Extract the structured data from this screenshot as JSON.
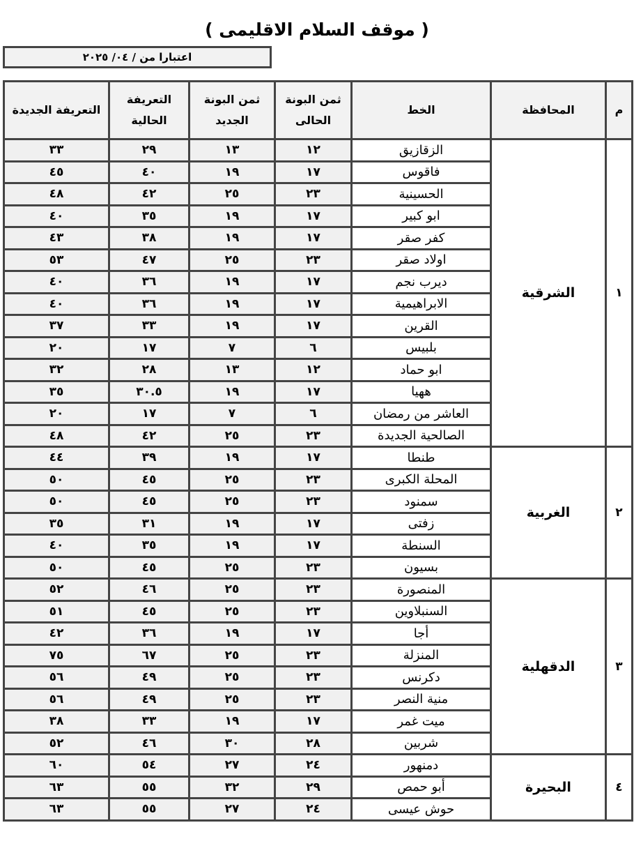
{
  "title": "( موقف السلام الاقليمى )",
  "effective_date": "اعتبارا من   / ٠٤/ ٢٠٢٥",
  "headers": {
    "index": "م",
    "governorate": "المحافظة",
    "line": "الخط",
    "current_ticket_price": "ثمن البونة الحالى",
    "new_ticket_price": "ثمن البونة الجديد",
    "current_fare": "التعريفة الحالية",
    "new_fare": "التعريفة الجديدة"
  },
  "groups": [
    {
      "index": "١",
      "governorate": "الشرقية",
      "rows": [
        {
          "line": "الزقازيق",
          "cur_ticket": "١٢",
          "new_ticket": "١٣",
          "cur_fare": "٢٩",
          "new_fare": "٣٣"
        },
        {
          "line": "فاقوس",
          "cur_ticket": "١٧",
          "new_ticket": "١٩",
          "cur_fare": "٤٠",
          "new_fare": "٤٥"
        },
        {
          "line": "الحسينية",
          "cur_ticket": "٢٣",
          "new_ticket": "٢٥",
          "cur_fare": "٤٢",
          "new_fare": "٤٨"
        },
        {
          "line": "ابو كبير",
          "cur_ticket": "١٧",
          "new_ticket": "١٩",
          "cur_fare": "٣٥",
          "new_fare": "٤٠"
        },
        {
          "line": "كفر صقر",
          "cur_ticket": "١٧",
          "new_ticket": "١٩",
          "cur_fare": "٣٨",
          "new_fare": "٤٣"
        },
        {
          "line": "اولاد صقر",
          "cur_ticket": "٢٣",
          "new_ticket": "٢٥",
          "cur_fare": "٤٧",
          "new_fare": "٥٣"
        },
        {
          "line": "ديرب نجم",
          "cur_ticket": "١٧",
          "new_ticket": "١٩",
          "cur_fare": "٣٦",
          "new_fare": "٤٠"
        },
        {
          "line": "الابراهيمية",
          "cur_ticket": "١٧",
          "new_ticket": "١٩",
          "cur_fare": "٣٦",
          "new_fare": "٤٠"
        },
        {
          "line": "القرين",
          "cur_ticket": "١٧",
          "new_ticket": "١٩",
          "cur_fare": "٣٣",
          "new_fare": "٣٧"
        },
        {
          "line": "بلبيس",
          "cur_ticket": "٦",
          "new_ticket": "٧",
          "cur_fare": "١٧",
          "new_fare": "٢٠"
        },
        {
          "line": "ابو حماد",
          "cur_ticket": "١٢",
          "new_ticket": "١٣",
          "cur_fare": "٢٨",
          "new_fare": "٣٢"
        },
        {
          "line": "ههيا",
          "cur_ticket": "١٧",
          "new_ticket": "١٩",
          "cur_fare": "٣٠.٥",
          "new_fare": "٣٥"
        },
        {
          "line": "العاشر من رمضان",
          "cur_ticket": "٦",
          "new_ticket": "٧",
          "cur_fare": "١٧",
          "new_fare": "٢٠"
        },
        {
          "line": "الصالحية الجديدة",
          "cur_ticket": "٢٣",
          "new_ticket": "٢٥",
          "cur_fare": "٤٢",
          "new_fare": "٤٨"
        }
      ]
    },
    {
      "index": "٢",
      "governorate": "الغربية",
      "rows": [
        {
          "line": "طنطا",
          "cur_ticket": "١٧",
          "new_ticket": "١٩",
          "cur_fare": "٣٩",
          "new_fare": "٤٤"
        },
        {
          "line": "المحلة الكبرى",
          "cur_ticket": "٢٣",
          "new_ticket": "٢٥",
          "cur_fare": "٤٥",
          "new_fare": "٥٠"
        },
        {
          "line": "سمنود",
          "cur_ticket": "٢٣",
          "new_ticket": "٢٥",
          "cur_fare": "٤٥",
          "new_fare": "٥٠"
        },
        {
          "line": "زفتى",
          "cur_ticket": "١٧",
          "new_ticket": "١٩",
          "cur_fare": "٣١",
          "new_fare": "٣٥"
        },
        {
          "line": "السنطة",
          "cur_ticket": "١٧",
          "new_ticket": "١٩",
          "cur_fare": "٣٥",
          "new_fare": "٤٠"
        },
        {
          "line": "بسيون",
          "cur_ticket": "٢٣",
          "new_ticket": "٢٥",
          "cur_fare": "٤٥",
          "new_fare": "٥٠"
        }
      ]
    },
    {
      "index": "٣",
      "governorate": "الدقهلية",
      "rows": [
        {
          "line": "المنصورة",
          "cur_ticket": "٢٣",
          "new_ticket": "٢٥",
          "cur_fare": "٤٦",
          "new_fare": "٥٢"
        },
        {
          "line": "السنبلاوين",
          "cur_ticket": "٢٣",
          "new_ticket": "٢٥",
          "cur_fare": "٤٥",
          "new_fare": "٥١"
        },
        {
          "line": "أجا",
          "cur_ticket": "١٧",
          "new_ticket": "١٩",
          "cur_fare": "٣٦",
          "new_fare": "٤٢"
        },
        {
          "line": "المنزلة",
          "cur_ticket": "٢٣",
          "new_ticket": "٢٥",
          "cur_fare": "٦٧",
          "new_fare": "٧٥"
        },
        {
          "line": "دكرنس",
          "cur_ticket": "٢٣",
          "new_ticket": "٢٥",
          "cur_fare": "٤٩",
          "new_fare": "٥٦"
        },
        {
          "line": "منية النصر",
          "cur_ticket": "٢٣",
          "new_ticket": "٢٥",
          "cur_fare": "٤٩",
          "new_fare": "٥٦"
        },
        {
          "line": "ميت غمر",
          "cur_ticket": "١٧",
          "new_ticket": "١٩",
          "cur_fare": "٣٣",
          "new_fare": "٣٨"
        },
        {
          "line": "شربين",
          "cur_ticket": "٢٨",
          "new_ticket": "٣٠",
          "cur_fare": "٤٦",
          "new_fare": "٥٢"
        }
      ]
    },
    {
      "index": "٤",
      "governorate": "البحيرة",
      "rows": [
        {
          "line": "دمنهور",
          "cur_ticket": "٢٤",
          "new_ticket": "٢٧",
          "cur_fare": "٥٤",
          "new_fare": "٦٠"
        },
        {
          "line": "أبو حمص",
          "cur_ticket": "٢٩",
          "new_ticket": "٣٢",
          "cur_fare": "٥٥",
          "new_fare": "٦٣"
        },
        {
          "line": "حوش عيسى",
          "cur_ticket": "٢٤",
          "new_ticket": "٢٧",
          "cur_fare": "٥٥",
          "new_fare": "٦٣"
        }
      ]
    }
  ]
}
